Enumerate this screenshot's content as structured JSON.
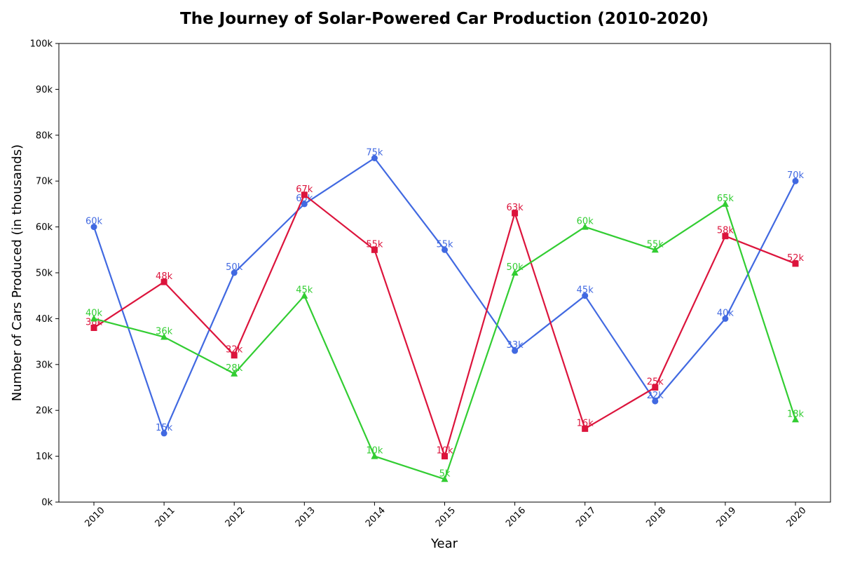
{
  "chart_data": {
    "type": "line",
    "title": "The Journey of Solar-Powered Car Production (2010-2020)",
    "xlabel": "Year",
    "ylabel": "Number of Cars Produced (in thousands)",
    "x": [
      "2010",
      "2011",
      "2012",
      "2013",
      "2014",
      "2015",
      "2016",
      "2017",
      "2018",
      "2019",
      "2020"
    ],
    "ylim": [
      0,
      100
    ],
    "yticks": [
      0,
      10,
      20,
      30,
      40,
      50,
      60,
      70,
      80,
      90,
      100
    ],
    "ytick_labels": [
      "0k",
      "10k",
      "20k",
      "30k",
      "40k",
      "50k",
      "60k",
      "70k",
      "80k",
      "90k",
      "100k"
    ],
    "grid": false,
    "legend": "none",
    "series": [
      {
        "color": "#4169e1",
        "marker": "circle",
        "values": [
          60,
          15,
          50,
          65,
          75,
          55,
          33,
          45,
          22,
          40,
          70
        ],
        "labels": [
          "60k",
          "15k",
          "50k",
          "65k",
          "75k",
          "55k",
          "33k",
          "45k",
          "22k",
          "40k",
          "70k"
        ]
      },
      {
        "color": "#dc143c",
        "marker": "square",
        "values": [
          38,
          48,
          32,
          67,
          55,
          10,
          63,
          16,
          25,
          58,
          52
        ],
        "labels": [
          "38k",
          "48k",
          "32k",
          "67k",
          "55k",
          "10k",
          "63k",
          "16k",
          "25k",
          "58k",
          "52k"
        ]
      },
      {
        "color": "#32cd32",
        "marker": "triangle",
        "values": [
          40,
          36,
          28,
          45,
          10,
          5,
          50,
          60,
          55,
          65,
          18
        ],
        "labels": [
          "40k",
          "36k",
          "28k",
          "45k",
          "10k",
          "5k",
          "50k",
          "60k",
          "55k",
          "65k",
          "18k"
        ]
      }
    ]
  }
}
